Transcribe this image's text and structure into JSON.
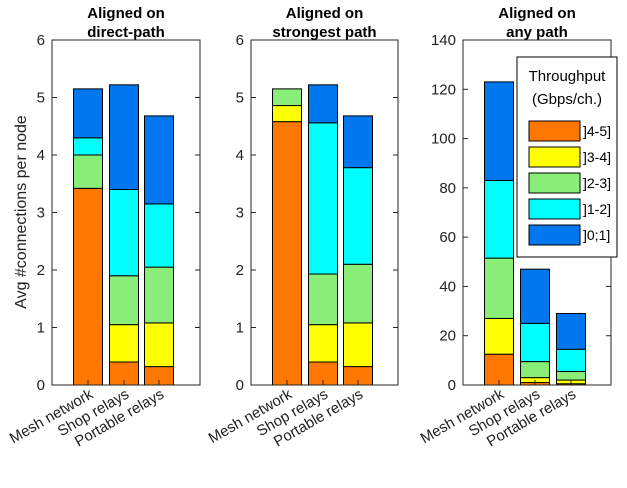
{
  "colors": {
    "4-5": "#ff7700",
    "3-4": "#ffff00",
    "2-3": "#88ee77",
    "1-2": "#00ffff",
    "0-1": "#0077ee"
  },
  "ylabel": "Avg #connections per node",
  "legend": {
    "title_lines": [
      "Throughput",
      "(Gbps/ch.)"
    ],
    "entries": [
      {
        "key": "4-5",
        "label": "]4-5]"
      },
      {
        "key": "3-4",
        "label": "]3-4]"
      },
      {
        "key": "2-3",
        "label": "]2-3]"
      },
      {
        "key": "1-2",
        "label": "]1-2]"
      },
      {
        "key": "0-1",
        "label": "]0;1]"
      }
    ]
  },
  "chart_data": [
    {
      "type": "bar",
      "stacked": true,
      "title_lines": [
        "Aligned on",
        "direct-path"
      ],
      "categories": [
        "Mesh network",
        "Shop relays",
        "Portable relays"
      ],
      "ylim": [
        0,
        6
      ],
      "yticks": [
        0,
        1,
        2,
        3,
        4,
        5,
        6
      ],
      "series": [
        {
          "name": "]4-5]",
          "key": "4-5",
          "values": [
            3.42,
            0.4,
            0.32
          ]
        },
        {
          "name": "]3-4]",
          "key": "3-4",
          "values": [
            0.0,
            0.65,
            0.76
          ]
        },
        {
          "name": "]2-3]",
          "key": "2-3",
          "values": [
            0.58,
            0.85,
            0.97
          ]
        },
        {
          "name": "]1-2]",
          "key": "1-2",
          "values": [
            0.3,
            1.5,
            1.1
          ]
        },
        {
          "name": "]0;1]",
          "key": "0-1",
          "values": [
            0.85,
            1.82,
            1.53
          ]
        }
      ]
    },
    {
      "type": "bar",
      "stacked": true,
      "title_lines": [
        "Aligned on",
        "strongest path"
      ],
      "categories": [
        "Mesh network",
        "Shop relays",
        "Portable relays"
      ],
      "ylim": [
        0,
        6
      ],
      "yticks": [
        0,
        1,
        2,
        3,
        4,
        5,
        6
      ],
      "series": [
        {
          "name": "]4-5]",
          "key": "4-5",
          "values": [
            4.58,
            0.4,
            0.32
          ]
        },
        {
          "name": "]3-4]",
          "key": "3-4",
          "values": [
            0.28,
            0.65,
            0.76
          ]
        },
        {
          "name": "]2-3]",
          "key": "2-3",
          "values": [
            0.29,
            0.88,
            1.02
          ]
        },
        {
          "name": "]1-2]",
          "key": "1-2",
          "values": [
            0.0,
            2.63,
            1.68
          ]
        },
        {
          "name": "]0;1]",
          "key": "0-1",
          "values": [
            0.0,
            0.66,
            0.9
          ]
        }
      ]
    },
    {
      "type": "bar",
      "stacked": true,
      "title_lines": [
        "Aligned on",
        "any path"
      ],
      "categories": [
        "Mesh network",
        "Shop relays",
        "Portable relays"
      ],
      "ylim": [
        0,
        140
      ],
      "yticks": [
        0,
        20,
        40,
        60,
        80,
        100,
        120,
        140
      ],
      "series": [
        {
          "name": "]4-5]",
          "key": "4-5",
          "values": [
            12.5,
            1.0,
            0.5
          ]
        },
        {
          "name": "]3-4]",
          "key": "3-4",
          "values": [
            14.5,
            2.0,
            1.5
          ]
        },
        {
          "name": "]2-3]",
          "key": "2-3",
          "values": [
            24.5,
            6.5,
            3.5
          ]
        },
        {
          "name": "]1-2]",
          "key": "1-2",
          "values": [
            31.5,
            15.5,
            9.0
          ]
        },
        {
          "name": "]0;1]",
          "key": "0-1",
          "values": [
            40.0,
            22.0,
            14.5
          ]
        }
      ]
    }
  ]
}
